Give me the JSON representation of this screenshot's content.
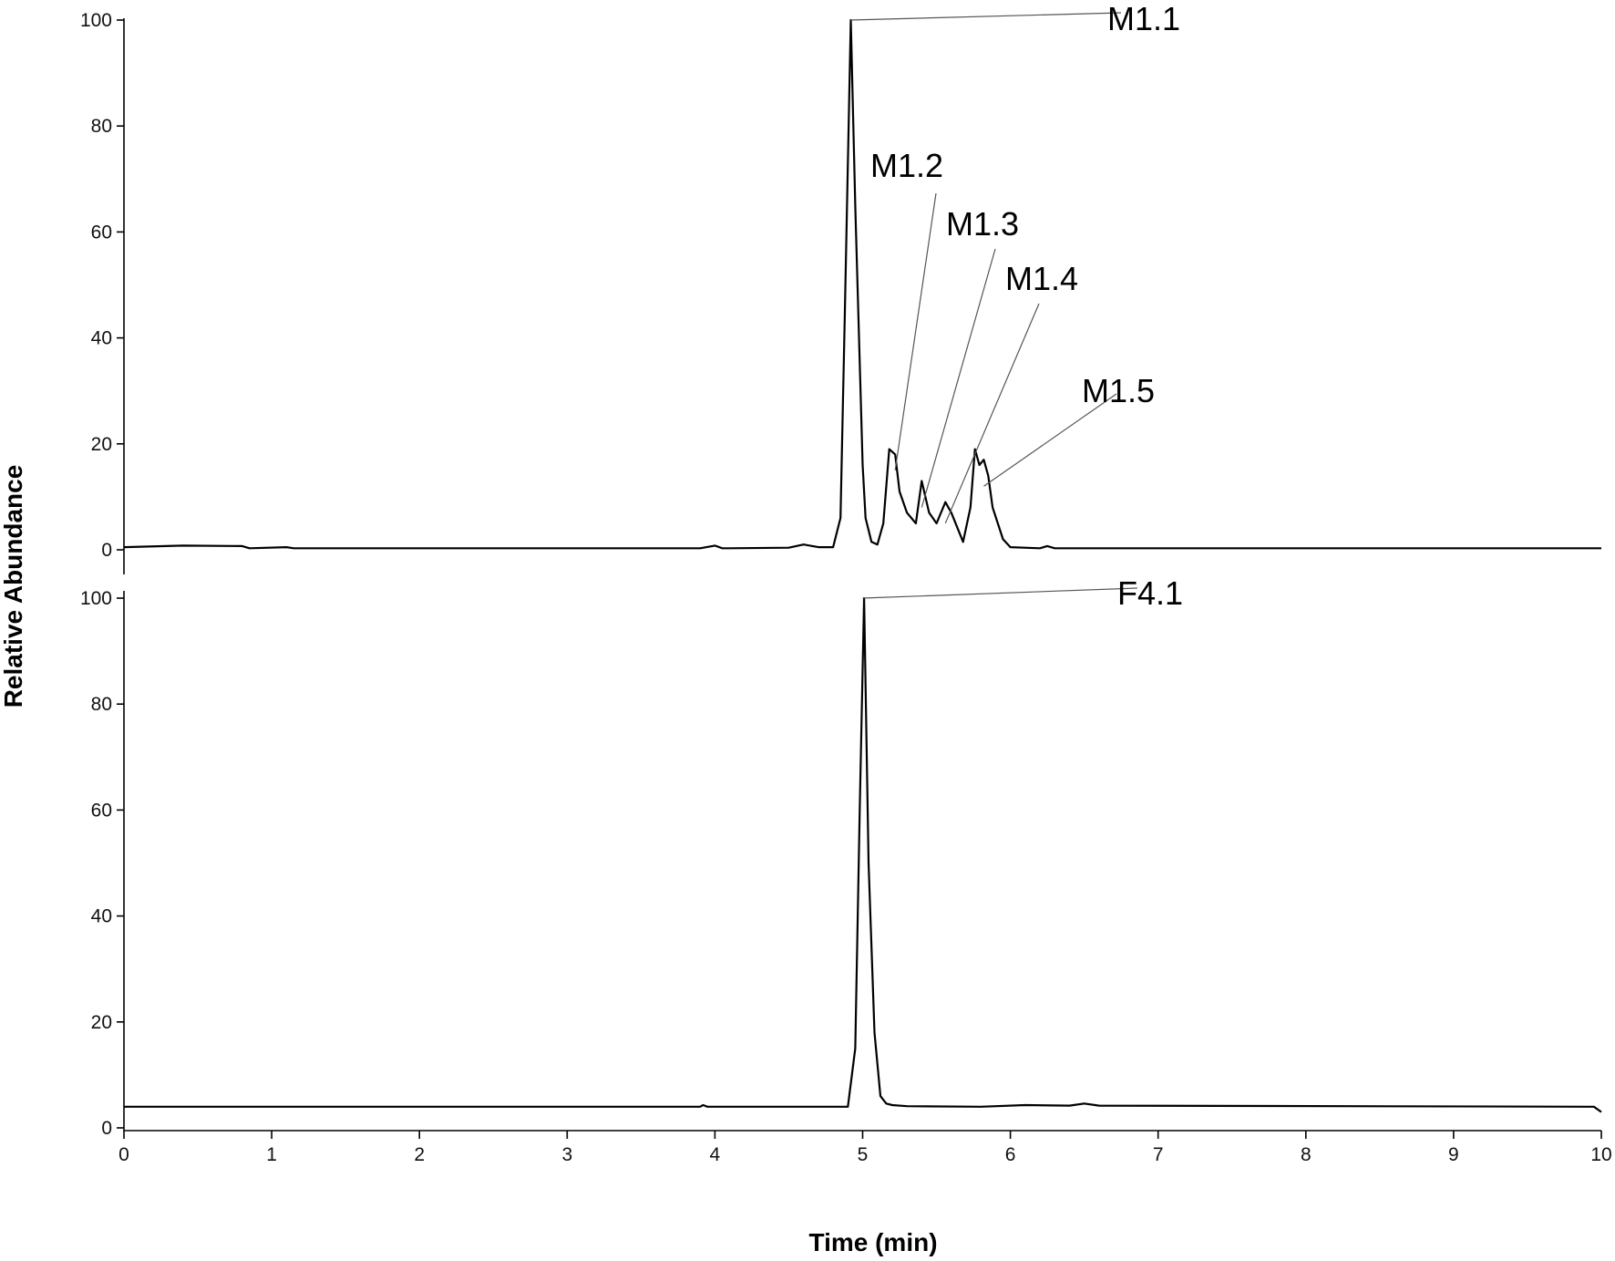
{
  "chart_data": {
    "type": "line",
    "ylabel": "Relative Abundance",
    "xlabel": "Time (min)",
    "xlim": [
      0,
      10
    ],
    "x_ticks": [
      "0",
      "1",
      "2",
      "3",
      "4",
      "5",
      "6",
      "7",
      "8",
      "9",
      "10"
    ],
    "y_ticks": [
      "0",
      "20",
      "40",
      "60",
      "80",
      "100"
    ],
    "grid": false,
    "panels": [
      {
        "ylim": [
          0,
          100
        ],
        "series": [
          {
            "x": [
              0,
              0.4,
              0.8,
              0.85,
              1.1,
              1.15,
              1.2,
              3.9,
              4.0,
              4.05,
              4.1,
              4.5,
              4.6,
              4.7,
              4.8,
              4.85,
              4.88,
              4.92,
              4.95,
              5.0,
              5.02,
              5.06,
              5.1,
              5.14,
              5.18,
              5.22,
              5.25,
              5.3,
              5.36,
              5.4,
              5.45,
              5.5,
              5.56,
              5.6,
              5.68,
              5.73,
              5.76,
              5.79,
              5.82,
              5.85,
              5.88,
              5.95,
              6.0,
              6.2,
              6.25,
              6.3,
              10
            ],
            "y": [
              0.5,
              0.8,
              0.7,
              0.3,
              0.5,
              0.3,
              0.3,
              0.3,
              0.8,
              0.3,
              0.3,
              0.4,
              1.0,
              0.5,
              0.5,
              6,
              45,
              100,
              65,
              16,
              6,
              1.5,
              1.0,
              5,
              19,
              18,
              11,
              7,
              5,
              13,
              7,
              5,
              9,
              7,
              1.5,
              8,
              19,
              16,
              17,
              14,
              8,
              2,
              0.5,
              0.3,
              0.7,
              0.3,
              0.3
            ]
          }
        ],
        "annotations": [
          {
            "label": "M1.1",
            "x": 4.92,
            "y": 100
          },
          {
            "label": "M1.2",
            "x": 5.22,
            "y": 15
          },
          {
            "label": "M1.3",
            "x": 5.4,
            "y": 8
          },
          {
            "label": "M1.4",
            "x": 5.56,
            "y": 5
          },
          {
            "label": "M1.5",
            "x": 5.82,
            "y": 12
          }
        ]
      },
      {
        "ylim": [
          0,
          100
        ],
        "series": [
          {
            "x": [
              0,
              3.9,
              3.92,
              3.95,
              4.9,
              4.95,
              4.98,
              5.01,
              5.04,
              5.08,
              5.12,
              5.16,
              5.2,
              5.3,
              5.8,
              6.1,
              6.4,
              6.5,
              6.6,
              9.95,
              10
            ],
            "y": [
              4,
              4,
              4.3,
              4,
              4,
              15,
              60,
              100,
              50,
              18,
              6,
              4.6,
              4.3,
              4.1,
              4.0,
              4.3,
              4.2,
              4.6,
              4.2,
              4,
              3
            ]
          }
        ],
        "annotations": [
          {
            "label": "F4.1",
            "x": 5.0,
            "y": 100
          }
        ]
      }
    ]
  }
}
